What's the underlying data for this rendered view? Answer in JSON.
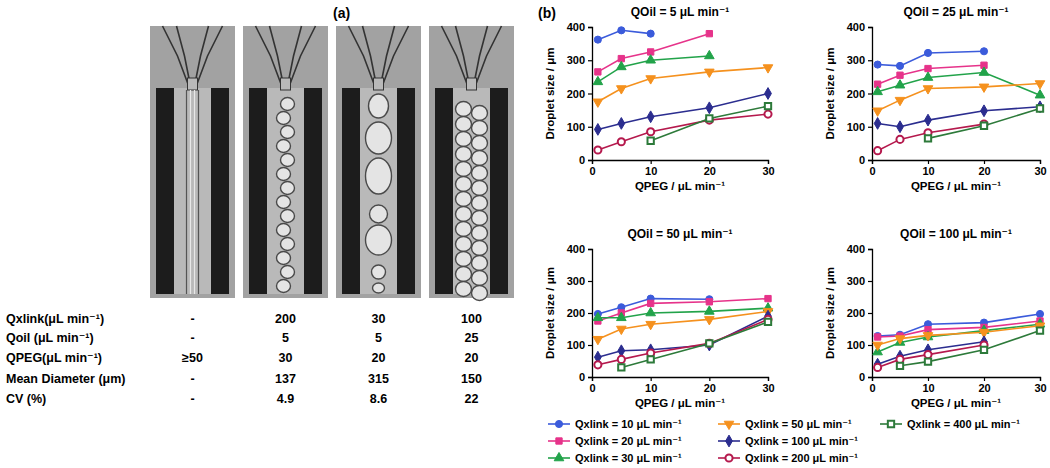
{
  "panels": [
    {
      "label": "(a)"
    },
    {
      "label": "(b)"
    }
  ],
  "table": {
    "rows": [
      {
        "label": "Qxlink(μL min⁻¹)",
        "cells": [
          "-",
          200,
          30,
          100
        ]
      },
      {
        "label": "Qoil (μL min⁻¹)",
        "cells": [
          "-",
          5,
          5,
          25
        ]
      },
      {
        "label": "QPEG(μL min⁻¹)",
        "cells": [
          "≥50",
          30,
          20,
          20
        ]
      },
      {
        "label": "Mean Diameter (μm)",
        "cells": [
          "-",
          137,
          315,
          150
        ]
      },
      {
        "label": "CV (%)",
        "cells": [
          "-",
          4.9,
          8.6,
          22
        ]
      }
    ]
  },
  "chart_data": [
    {
      "type": "line",
      "title": "QOil = 5 μL min⁻¹",
      "x_label": "QPEG / μL min⁻¹",
      "y_label": "Droplet size / μm",
      "x": [
        1,
        5,
        10,
        20,
        30
      ],
      "xlim": [
        0,
        30
      ],
      "ylim": [
        0,
        400
      ],
      "xticks": [
        0,
        10,
        20,
        30
      ],
      "yticks": [
        0,
        100,
        200,
        300,
        400
      ],
      "grid": false,
      "legend": "bottom",
      "series": [
        {
          "name": "Qxlink = 10 μL min⁻¹",
          "color": "#3b5bdb",
          "marker": "circle",
          "values": [
            362,
            390,
            380,
            null,
            null
          ]
        },
        {
          "name": "Qxlink = 20 μL min⁻¹",
          "color": "#e6338a",
          "marker": "square",
          "values": [
            265,
            305,
            325,
            380,
            null
          ]
        },
        {
          "name": "Qxlink = 30 μL min⁻¹",
          "color": "#22a34a",
          "marker": "triangle-up",
          "values": [
            235,
            280,
            300,
            313,
            null
          ]
        },
        {
          "name": "Qxlink = 50 μL min⁻¹",
          "color": "#f5911e",
          "marker": "triangle-down",
          "values": [
            175,
            215,
            245,
            265,
            278
          ]
        },
        {
          "name": "Qxlink = 100 μL min⁻¹",
          "color": "#2b2d8f",
          "marker": "diamond",
          "values": [
            92,
            110,
            130,
            157,
            200
          ]
        },
        {
          "name": "Qxlink = 200 μL min⁻¹",
          "color": "#b5194d",
          "marker": "circle-open",
          "values": [
            30,
            55,
            85,
            120,
            138
          ]
        },
        {
          "name": "Qxlink = 400 μL min⁻¹",
          "color": "#2d7a3a",
          "marker": "square-open",
          "values": [
            null,
            null,
            58,
            125,
            162
          ]
        }
      ]
    },
    {
      "type": "line",
      "title": "QOil = 25 μL min⁻¹",
      "x_label": "QPEG / μL min⁻¹",
      "y_label": "Droplet size / μm",
      "x": [
        1,
        5,
        10,
        20,
        30
      ],
      "xlim": [
        0,
        30
      ],
      "ylim": [
        0,
        400
      ],
      "xticks": [
        0,
        10,
        20,
        30
      ],
      "yticks": [
        0,
        100,
        200,
        300,
        400
      ],
      "grid": false,
      "series": [
        {
          "name": "Qxlink = 10 μL min⁻¹",
          "color": "#3b5bdb",
          "marker": "circle",
          "values": [
            287,
            283,
            322,
            327,
            null
          ]
        },
        {
          "name": "Qxlink = 20 μL min⁻¹",
          "color": "#e6338a",
          "marker": "square",
          "values": [
            228,
            255,
            275,
            285,
            null
          ]
        },
        {
          "name": "Qxlink = 30 μL min⁻¹",
          "color": "#22a34a",
          "marker": "triangle-up",
          "values": [
            205,
            225,
            248,
            263,
            195
          ]
        },
        {
          "name": "Qxlink = 50 μL min⁻¹",
          "color": "#f5911e",
          "marker": "triangle-down",
          "values": [
            148,
            180,
            215,
            220,
            230
          ]
        },
        {
          "name": "Qxlink = 100 μL min⁻¹",
          "color": "#2b2d8f",
          "marker": "diamond",
          "values": [
            110,
            100,
            120,
            148,
            160
          ]
        },
        {
          "name": "Qxlink = 200 μL min⁻¹",
          "color": "#b5194d",
          "marker": "circle-open",
          "values": [
            28,
            62,
            82,
            108,
            null
          ]
        },
        {
          "name": "Qxlink = 400 μL min⁻¹",
          "color": "#2d7a3a",
          "marker": "square-open",
          "values": [
            null,
            null,
            65,
            103,
            155
          ]
        }
      ]
    },
    {
      "type": "line",
      "title": "QOil = 50 μL min⁻¹",
      "x_label": "QPEG / μL min⁻¹",
      "y_label": "Droplet size / μm",
      "x": [
        1,
        5,
        10,
        20,
        30
      ],
      "xlim": [
        0,
        30
      ],
      "ylim": [
        0,
        400
      ],
      "xticks": [
        0,
        10,
        20,
        30
      ],
      "yticks": [
        0,
        100,
        200,
        300,
        400
      ],
      "grid": false,
      "series": [
        {
          "name": "Qxlink = 10 μL min⁻¹",
          "color": "#3b5bdb",
          "marker": "circle",
          "values": [
            197,
            218,
            245,
            243,
            null
          ]
        },
        {
          "name": "Qxlink = 20 μL min⁻¹",
          "color": "#e6338a",
          "marker": "square",
          "values": [
            175,
            200,
            230,
            235,
            245
          ]
        },
        {
          "name": "Qxlink = 30 μL min⁻¹",
          "color": "#22a34a",
          "marker": "triangle-up",
          "values": [
            185,
            185,
            200,
            205,
            215
          ]
        },
        {
          "name": "Qxlink = 50 μL min⁻¹",
          "color": "#f5911e",
          "marker": "triangle-down",
          "values": [
            118,
            150,
            165,
            180,
            205
          ]
        },
        {
          "name": "Qxlink = 100 μL min⁻¹",
          "color": "#2b2d8f",
          "marker": "diamond",
          "values": [
            62,
            82,
            85,
            100,
            190
          ]
        },
        {
          "name": "Qxlink = 200 μL min⁻¹",
          "color": "#b5194d",
          "marker": "circle-open",
          "values": [
            38,
            55,
            75,
            105,
            180
          ]
        },
        {
          "name": "Qxlink = 400 μL min⁻¹",
          "color": "#2d7a3a",
          "marker": "square-open",
          "values": [
            null,
            30,
            55,
            105,
            172
          ]
        }
      ]
    },
    {
      "type": "line",
      "title": "QOil = 100 μL min⁻¹",
      "x_label": "QPEG / μL min⁻¹",
      "y_label": "Droplet size / μm",
      "x": [
        1,
        5,
        10,
        20,
        30
      ],
      "xlim": [
        0,
        30
      ],
      "ylim": [
        0,
        400
      ],
      "xticks": [
        0,
        10,
        20,
        30
      ],
      "yticks": [
        0,
        100,
        200,
        300,
        400
      ],
      "grid": false,
      "series": [
        {
          "name": "Qxlink = 10 μL min⁻¹",
          "color": "#3b5bdb",
          "marker": "circle",
          "values": [
            128,
            132,
            165,
            170,
            197
          ]
        },
        {
          "name": "Qxlink = 20 μL min⁻¹",
          "color": "#e6338a",
          "marker": "square",
          "values": [
            125,
            128,
            148,
            155,
            175
          ]
        },
        {
          "name": "Qxlink = 30 μL min⁻¹",
          "color": "#22a34a",
          "marker": "triangle-up",
          "values": [
            78,
            108,
            125,
            145,
            165
          ]
        },
        {
          "name": "Qxlink = 50 μL min⁻¹",
          "color": "#f5911e",
          "marker": "triangle-down",
          "values": [
            100,
            120,
            130,
            140,
            160
          ]
        },
        {
          "name": "Qxlink = 100 μL min⁻¹",
          "color": "#2b2d8f",
          "marker": "diamond",
          "values": [
            40,
            65,
            85,
            110,
            null
          ]
        },
        {
          "name": "Qxlink = 200 μL min⁻¹",
          "color": "#b5194d",
          "marker": "circle-open",
          "values": [
            30,
            55,
            70,
            100,
            null
          ]
        },
        {
          "name": "Qxlink = 400 μL min⁻¹",
          "color": "#2d7a3a",
          "marker": "square-open",
          "values": [
            null,
            35,
            48,
            85,
            145
          ]
        }
      ]
    }
  ]
}
